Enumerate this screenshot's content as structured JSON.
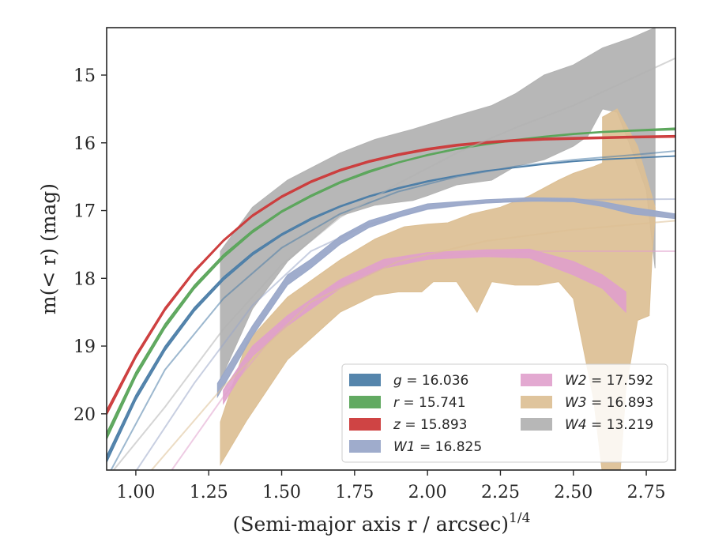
{
  "chart_data": {
    "type": "area",
    "xlabel": "(Semi-major axis r / arcsec)",
    "xlabel_power": "1/4",
    "ylabel": "m(< r) (mag)",
    "xlim": [
      0.9,
      2.85
    ],
    "ylim": [
      20.83,
      14.3
    ],
    "y_inverted": true,
    "xticks": [
      "1.00",
      "1.25",
      "1.50",
      "1.75",
      "2.00",
      "2.25",
      "2.50",
      "2.75"
    ],
    "yticks": [
      "15",
      "16",
      "17",
      "18",
      "19",
      "20"
    ],
    "legend_position": "lower-right",
    "legend_columns": 2,
    "series": [
      {
        "name": "g = 16.036",
        "var": "g",
        "value": "16.036",
        "color": "#4c7ea8",
        "band_opacity": 0.95,
        "upper": [
          [
            0.9,
            20.62
          ],
          [
            1.0,
            19.72
          ],
          [
            1.1,
            19.0
          ],
          [
            1.2,
            18.43
          ],
          [
            1.3,
            17.98
          ],
          [
            1.4,
            17.62
          ],
          [
            1.5,
            17.34
          ],
          [
            1.6,
            17.11
          ],
          [
            1.7,
            16.93
          ],
          [
            1.8,
            16.78
          ],
          [
            1.9,
            16.66
          ],
          [
            2.0,
            16.56
          ],
          [
            2.1,
            16.48
          ],
          [
            2.2,
            16.41
          ],
          [
            2.3,
            16.36
          ],
          [
            2.4,
            16.31
          ],
          [
            2.5,
            16.27
          ],
          [
            2.6,
            16.24
          ],
          [
            2.7,
            16.22
          ],
          [
            2.85,
            16.19
          ]
        ],
        "lower": [
          [
            0.9,
            20.72
          ],
          [
            1.0,
            19.8
          ],
          [
            1.1,
            19.07
          ],
          [
            1.2,
            18.49
          ],
          [
            1.3,
            18.03
          ],
          [
            1.4,
            17.66
          ],
          [
            1.5,
            17.37
          ],
          [
            1.6,
            17.14
          ],
          [
            1.7,
            16.95
          ],
          [
            1.8,
            16.8
          ],
          [
            1.9,
            16.68
          ],
          [
            2.0,
            16.58
          ],
          [
            2.1,
            16.49
          ],
          [
            2.2,
            16.42
          ],
          [
            2.3,
            16.37
          ],
          [
            2.4,
            16.32
          ],
          [
            2.5,
            16.28
          ],
          [
            2.6,
            16.25
          ],
          [
            2.7,
            16.23
          ],
          [
            2.85,
            16.2
          ]
        ],
        "model": [
          [
            0.9,
            20.95
          ],
          [
            1.1,
            19.35
          ],
          [
            1.3,
            18.3
          ],
          [
            1.5,
            17.55
          ],
          [
            1.7,
            17.05
          ],
          [
            1.9,
            16.72
          ],
          [
            2.1,
            16.5
          ],
          [
            2.3,
            16.35
          ],
          [
            2.5,
            16.25
          ],
          [
            2.7,
            16.18
          ],
          [
            2.85,
            16.12
          ]
        ]
      },
      {
        "name": "r = 15.741",
        "var": "r",
        "value": "15.741",
        "color": "#5aa55a",
        "band_opacity": 0.95,
        "upper": [
          [
            0.9,
            20.28
          ],
          [
            1.0,
            19.38
          ],
          [
            1.1,
            18.67
          ],
          [
            1.2,
            18.1
          ],
          [
            1.3,
            17.65
          ],
          [
            1.4,
            17.29
          ],
          [
            1.5,
            17.0
          ],
          [
            1.6,
            16.77
          ],
          [
            1.7,
            16.57
          ],
          [
            1.8,
            16.41
          ],
          [
            1.9,
            16.28
          ],
          [
            2.0,
            16.17
          ],
          [
            2.1,
            16.08
          ],
          [
            2.2,
            16.01
          ],
          [
            2.3,
            15.95
          ],
          [
            2.4,
            15.9
          ],
          [
            2.5,
            15.86
          ],
          [
            2.6,
            15.83
          ],
          [
            2.7,
            15.81
          ],
          [
            2.85,
            15.78
          ]
        ],
        "lower": [
          [
            0.9,
            20.38
          ],
          [
            1.0,
            19.46
          ],
          [
            1.1,
            18.74
          ],
          [
            1.2,
            18.16
          ],
          [
            1.3,
            17.7
          ],
          [
            1.4,
            17.33
          ],
          [
            1.5,
            17.03
          ],
          [
            1.6,
            16.8
          ],
          [
            1.7,
            16.6
          ],
          [
            1.8,
            16.44
          ],
          [
            1.9,
            16.3
          ],
          [
            2.0,
            16.19
          ],
          [
            2.1,
            16.1
          ],
          [
            2.2,
            16.03
          ],
          [
            2.3,
            15.97
          ],
          [
            2.4,
            15.92
          ],
          [
            2.5,
            15.88
          ],
          [
            2.6,
            15.85
          ],
          [
            2.7,
            15.83
          ],
          [
            2.85,
            15.81
          ]
        ]
      },
      {
        "name": "z = 15.893",
        "var": "z",
        "value": "15.893",
        "color": "#cc3a3a",
        "band_opacity": 0.95,
        "upper": [
          [
            0.9,
            19.94
          ],
          [
            1.0,
            19.12
          ],
          [
            1.1,
            18.43
          ],
          [
            1.2,
            17.88
          ],
          [
            1.3,
            17.43
          ],
          [
            1.4,
            17.06
          ],
          [
            1.5,
            16.78
          ],
          [
            1.6,
            16.56
          ],
          [
            1.7,
            16.39
          ],
          [
            1.8,
            16.26
          ],
          [
            1.9,
            16.16
          ],
          [
            2.0,
            16.08
          ],
          [
            2.1,
            16.02
          ],
          [
            2.2,
            15.98
          ],
          [
            2.3,
            15.95
          ],
          [
            2.4,
            15.93
          ],
          [
            2.5,
            15.92
          ],
          [
            2.6,
            15.91
          ],
          [
            2.7,
            15.9
          ],
          [
            2.85,
            15.89
          ]
        ],
        "lower": [
          [
            0.9,
            20.02
          ],
          [
            1.0,
            19.18
          ],
          [
            1.1,
            18.48
          ],
          [
            1.2,
            17.92
          ],
          [
            1.3,
            17.46
          ],
          [
            1.4,
            17.09
          ],
          [
            1.5,
            16.81
          ],
          [
            1.6,
            16.59
          ],
          [
            1.7,
            16.42
          ],
          [
            1.8,
            16.29
          ],
          [
            1.9,
            16.19
          ],
          [
            2.0,
            16.11
          ],
          [
            2.1,
            16.05
          ],
          [
            2.2,
            16.01
          ],
          [
            2.3,
            15.98
          ],
          [
            2.4,
            15.96
          ],
          [
            2.5,
            15.95
          ],
          [
            2.6,
            15.94
          ],
          [
            2.7,
            15.93
          ],
          [
            2.85,
            15.92
          ]
        ]
      },
      {
        "name": "W1 = 16.825",
        "var": "W1",
        "value": "16.825",
        "color": "#9aa8c9",
        "band_opacity": 0.95,
        "upper": [
          [
            1.28,
            19.55
          ],
          [
            1.4,
            18.7
          ],
          [
            1.52,
            17.95
          ],
          [
            1.6,
            17.72
          ],
          [
            1.7,
            17.38
          ],
          [
            1.8,
            17.15
          ],
          [
            1.9,
            17.02
          ],
          [
            2.0,
            16.9
          ],
          [
            2.1,
            16.87
          ],
          [
            2.2,
            16.84
          ],
          [
            2.35,
            16.81
          ],
          [
            2.5,
            16.82
          ],
          [
            2.6,
            16.87
          ],
          [
            2.7,
            16.95
          ],
          [
            2.85,
            17.05
          ]
        ],
        "lower": [
          [
            1.28,
            19.75
          ],
          [
            1.4,
            18.85
          ],
          [
            1.52,
            18.1
          ],
          [
            1.6,
            17.85
          ],
          [
            1.7,
            17.5
          ],
          [
            1.8,
            17.25
          ],
          [
            1.9,
            17.1
          ],
          [
            2.0,
            16.98
          ],
          [
            2.1,
            16.93
          ],
          [
            2.2,
            16.89
          ],
          [
            2.35,
            16.86
          ],
          [
            2.5,
            16.87
          ],
          [
            2.6,
            16.94
          ],
          [
            2.7,
            17.05
          ],
          [
            2.85,
            17.12
          ]
        ],
        "model": [
          [
            1.0,
            20.85
          ],
          [
            1.2,
            19.55
          ],
          [
            1.4,
            18.4
          ],
          [
            1.6,
            17.6
          ],
          [
            1.8,
            17.2
          ],
          [
            2.0,
            16.98
          ],
          [
            2.2,
            16.88
          ],
          [
            2.5,
            16.84
          ],
          [
            2.85,
            16.83
          ]
        ]
      },
      {
        "name": "W2 = 17.592",
        "var": "W2",
        "value": "17.592",
        "color": "#e0a0cc",
        "band_opacity": 0.9,
        "upper": [
          [
            1.3,
            19.65
          ],
          [
            1.4,
            19.0
          ],
          [
            1.52,
            18.55
          ],
          [
            1.7,
            18.02
          ],
          [
            1.85,
            17.72
          ],
          [
            2.0,
            17.62
          ],
          [
            2.2,
            17.58
          ],
          [
            2.35,
            17.57
          ],
          [
            2.5,
            17.75
          ],
          [
            2.6,
            17.95
          ],
          [
            2.68,
            18.2
          ]
        ],
        "lower": [
          [
            2.68,
            18.5
          ],
          [
            2.6,
            18.15
          ],
          [
            2.5,
            17.95
          ],
          [
            2.35,
            17.7
          ],
          [
            2.2,
            17.68
          ],
          [
            2.0,
            17.72
          ],
          [
            1.85,
            17.85
          ],
          [
            1.7,
            18.15
          ],
          [
            1.52,
            18.7
          ],
          [
            1.4,
            19.15
          ],
          [
            1.3,
            19.85
          ]
        ],
        "model": [
          [
            1.12,
            20.85
          ],
          [
            1.3,
            19.75
          ],
          [
            1.5,
            18.7
          ],
          [
            1.7,
            18.05
          ],
          [
            1.9,
            17.75
          ],
          [
            2.1,
            17.64
          ],
          [
            2.4,
            17.6
          ],
          [
            2.85,
            17.6
          ]
        ]
      },
      {
        "name": "W3 = 16.893",
        "var": "W3",
        "value": "16.893",
        "color": "#dcbf94",
        "band_opacity": 0.92,
        "upper": [
          [
            1.29,
            20.12
          ],
          [
            1.38,
            18.95
          ],
          [
            1.52,
            18.28
          ],
          [
            1.7,
            17.73
          ],
          [
            1.82,
            17.42
          ],
          [
            1.92,
            17.24
          ],
          [
            2.0,
            17.2
          ],
          [
            2.07,
            17.18
          ],
          [
            2.15,
            17.05
          ],
          [
            2.25,
            16.95
          ],
          [
            2.35,
            16.78
          ],
          [
            2.45,
            16.55
          ],
          [
            2.5,
            16.45
          ],
          [
            2.57,
            16.35
          ],
          [
            2.6,
            16.3
          ],
          [
            2.6,
            15.62
          ],
          [
            2.65,
            15.5
          ],
          [
            2.72,
            16.05
          ],
          [
            2.78,
            16.95
          ],
          [
            2.78,
            17.1
          ]
        ],
        "lower": [
          [
            2.77,
            17.65
          ],
          [
            2.76,
            18.55
          ],
          [
            2.72,
            18.62
          ],
          [
            2.68,
            19.65
          ],
          [
            2.66,
            20.9
          ],
          [
            2.6,
            20.9
          ],
          [
            2.57,
            19.8
          ],
          [
            2.5,
            18.3
          ],
          [
            2.45,
            18.05
          ],
          [
            2.38,
            18.1
          ],
          [
            2.3,
            18.1
          ],
          [
            2.22,
            18.05
          ],
          [
            2.17,
            18.5
          ],
          [
            2.1,
            18.05
          ],
          [
            2.02,
            18.05
          ],
          [
            1.98,
            18.2
          ],
          [
            1.9,
            18.2
          ],
          [
            1.82,
            18.25
          ],
          [
            1.7,
            18.5
          ],
          [
            1.52,
            19.2
          ],
          [
            1.38,
            20.1
          ],
          [
            1.29,
            20.75
          ]
        ],
        "model": [
          [
            1.05,
            20.85
          ],
          [
            1.3,
            19.6
          ],
          [
            1.6,
            18.35
          ],
          [
            1.9,
            17.75
          ],
          [
            2.2,
            17.45
          ],
          [
            2.5,
            17.28
          ],
          [
            2.85,
            17.15
          ]
        ]
      },
      {
        "name": "W4 = 13.219",
        "var": "W4",
        "value": "13.219",
        "color": "#b3b3b3",
        "band_opacity": 0.95,
        "upper": [
          [
            1.29,
            17.6
          ],
          [
            1.4,
            16.95
          ],
          [
            1.52,
            16.55
          ],
          [
            1.7,
            16.15
          ],
          [
            1.82,
            15.95
          ],
          [
            1.95,
            15.8
          ],
          [
            2.1,
            15.6
          ],
          [
            2.22,
            15.45
          ],
          [
            2.3,
            15.28
          ],
          [
            2.4,
            15.0
          ],
          [
            2.5,
            14.85
          ],
          [
            2.6,
            14.6
          ],
          [
            2.7,
            14.45
          ],
          [
            2.78,
            14.3
          ],
          [
            2.78,
            17.05
          ]
        ],
        "lower": [
          [
            2.78,
            17.85
          ],
          [
            2.75,
            16.7
          ],
          [
            2.7,
            16.1
          ],
          [
            2.65,
            15.55
          ],
          [
            2.6,
            15.5
          ],
          [
            2.55,
            15.9
          ],
          [
            2.5,
            16.05
          ],
          [
            2.4,
            16.25
          ],
          [
            2.3,
            16.35
          ],
          [
            2.22,
            16.55
          ],
          [
            2.1,
            16.62
          ],
          [
            2.0,
            16.78
          ],
          [
            1.95,
            16.85
          ],
          [
            1.82,
            16.92
          ],
          [
            1.7,
            17.08
          ],
          [
            1.6,
            17.45
          ],
          [
            1.52,
            17.75
          ],
          [
            1.4,
            18.45
          ],
          [
            1.29,
            19.5
          ]
        ],
        "model": [
          [
            0.92,
            20.85
          ],
          [
            1.1,
            19.9
          ],
          [
            1.3,
            18.75
          ],
          [
            1.5,
            17.8
          ],
          [
            1.7,
            17.1
          ],
          [
            1.9,
            16.6
          ],
          [
            2.1,
            16.15
          ],
          [
            2.3,
            15.78
          ],
          [
            2.5,
            15.45
          ],
          [
            2.7,
            15.05
          ],
          [
            2.85,
            14.75
          ]
        ]
      }
    ]
  }
}
